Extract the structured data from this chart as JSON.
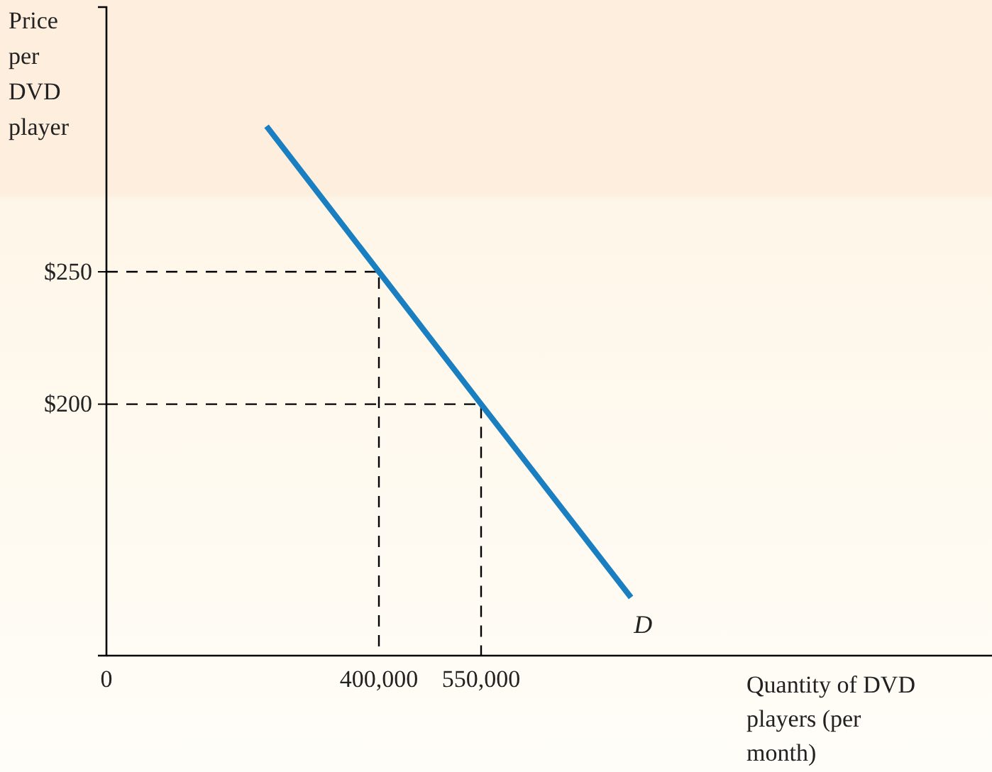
{
  "chart_data": {
    "type": "line",
    "xlabel": "Quantity of DVD players (per month)",
    "ylabel": "Price per DVD player",
    "xlim": [
      0,
      1300000
    ],
    "ylim": [
      105,
      350
    ],
    "xticks": [
      0,
      {
        "value": 400000,
        "label": "400,000"
      },
      {
        "value": 550000,
        "label": "550,000"
      }
    ],
    "yticks": [
      {
        "value": 250,
        "label": "$250"
      },
      {
        "value": 200,
        "label": "$200"
      }
    ],
    "series": [
      {
        "color": "#1a7fc1",
        "x": [
          235000,
          400000,
          550000,
          770000
        ],
        "values": [
          305,
          250,
          200,
          127
        ]
      },
      {
        "color": "#000000",
        "line_style": "dashed",
        "x": [
          0,
          400000,
          400000
        ],
        "values": [
          250,
          250,
          105
        ]
      },
      {
        "color": "#000000",
        "line_style": "dashed",
        "x": [
          0,
          550000,
          550000
        ],
        "values": [
          200,
          200,
          105
        ]
      }
    ],
    "annotations": [
      "D"
    ],
    "grid": false
  }
}
